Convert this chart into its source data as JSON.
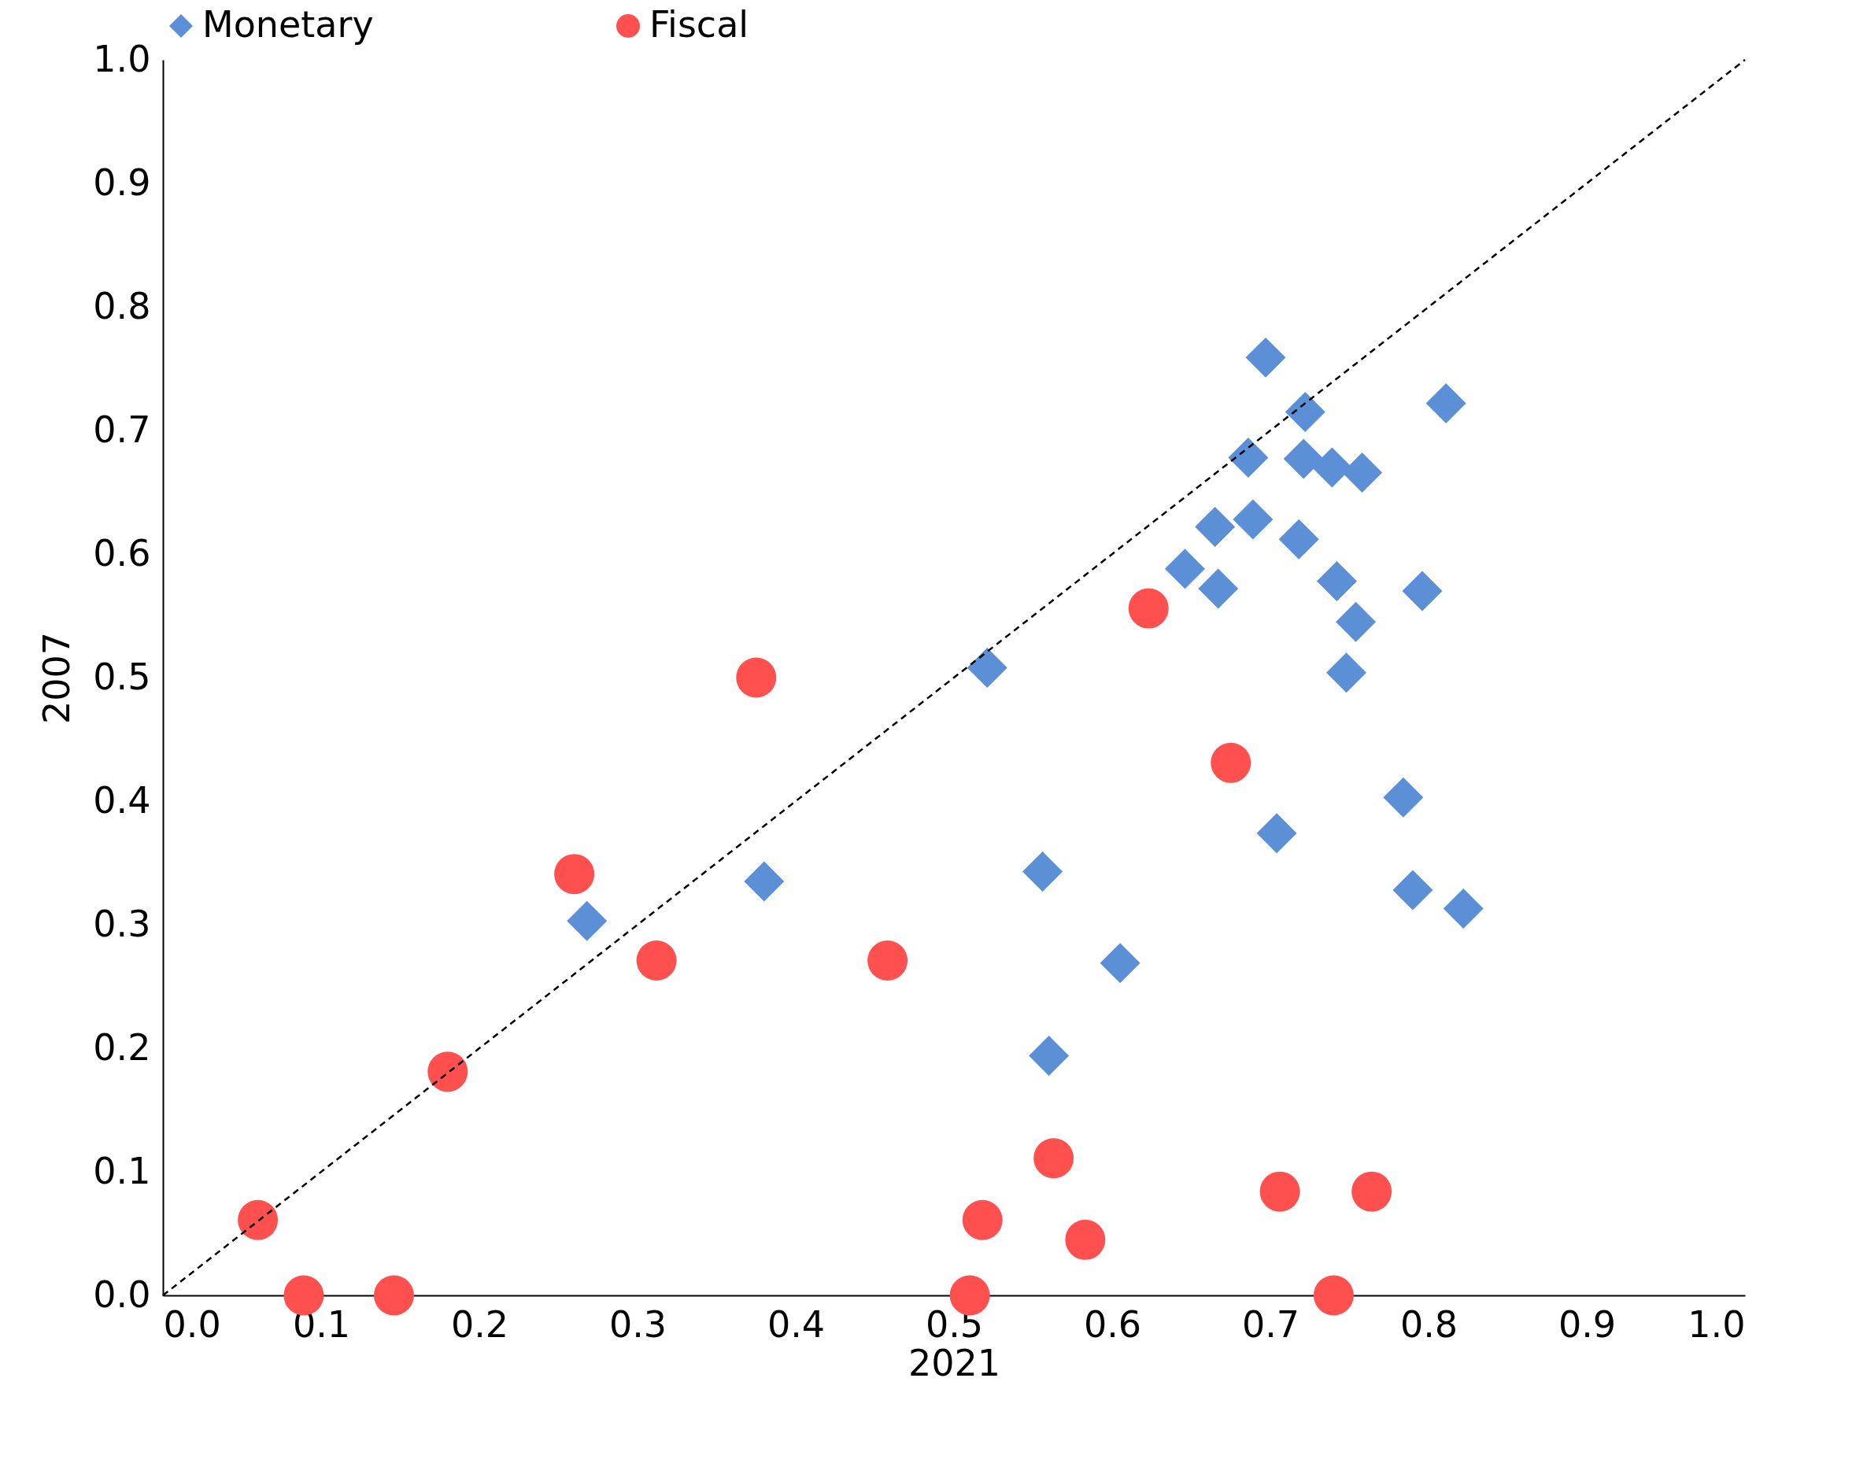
{
  "chart_data": {
    "type": "scatter",
    "xlabel": "2021",
    "ylabel": "2007",
    "xlim": [
      0,
      1
    ],
    "ylim": [
      0,
      1
    ],
    "xticks": [
      {
        "value": 0,
        "label": "0.0"
      },
      {
        "value": 0.1,
        "label": "0.1"
      },
      {
        "value": 0.2,
        "label": "0.2"
      },
      {
        "value": 0.3,
        "label": "0.3"
      },
      {
        "value": 0.4,
        "label": "0.4"
      },
      {
        "value": 0.5,
        "label": "0.5"
      },
      {
        "value": 0.6,
        "label": "0.6"
      },
      {
        "value": 0.7,
        "label": "0.7"
      },
      {
        "value": 0.8,
        "label": "0.8"
      },
      {
        "value": 0.9,
        "label": "0.9"
      },
      {
        "value": 1,
        "label": "1.0"
      }
    ],
    "yticks": [
      {
        "value": 0,
        "label": "0.0"
      },
      {
        "value": 0.1,
        "label": "0.1"
      },
      {
        "value": 0.2,
        "label": "0.2"
      },
      {
        "value": 0.3,
        "label": "0.3"
      },
      {
        "value": 0.4,
        "label": "0.4"
      },
      {
        "value": 0.5,
        "label": "0.5"
      },
      {
        "value": 0.6,
        "label": "0.6"
      },
      {
        "value": 0.7,
        "label": "0.7"
      },
      {
        "value": 0.8,
        "label": "0.8"
      },
      {
        "value": 0.9,
        "label": "0.9"
      },
      {
        "value": 1,
        "label": "1.0"
      }
    ],
    "grid": false,
    "legend": "top",
    "series": [
      {
        "name": "Monetary",
        "color": "#5b8fd6",
        "marker": "diamond",
        "x": [
          0.697,
          0.722,
          0.811,
          0.686,
          0.721,
          0.739,
          0.758,
          0.665,
          0.689,
          0.718,
          0.646,
          0.667,
          0.742,
          0.796,
          0.754,
          0.748,
          0.521,
          0.784,
          0.704,
          0.556,
          0.38,
          0.268,
          0.79,
          0.822,
          0.605,
          0.56
        ],
        "values": [
          0.759,
          0.715,
          0.722,
          0.678,
          0.677,
          0.67,
          0.666,
          0.622,
          0.628,
          0.612,
          0.588,
          0.572,
          0.578,
          0.57,
          0.545,
          0.504,
          0.508,
          0.403,
          0.374,
          0.343,
          0.335,
          0.303,
          0.328,
          0.313,
          0.269,
          0.194
        ]
      },
      {
        "name": "Fiscal",
        "color": "#ff5050",
        "marker": "circle",
        "x": [
          0.06,
          0.089,
          0.146,
          0.18,
          0.26,
          0.312,
          0.375,
          0.458,
          0.51,
          0.518,
          0.563,
          0.583,
          0.623,
          0.675,
          0.706,
          0.764,
          0.74
        ],
        "values": [
          0.061,
          0,
          0,
          0.181,
          0.341,
          0.271,
          0.5,
          0.271,
          0,
          0.061,
          0.111,
          0.045,
          0.556,
          0.431,
          0.084,
          0.084,
          0
        ]
      },
      {
        "type": "line",
        "color": "#000000",
        "line_style": "dashed",
        "marker": "none",
        "x": [
          0,
          1
        ],
        "values": [
          0,
          1
        ]
      }
    ]
  }
}
